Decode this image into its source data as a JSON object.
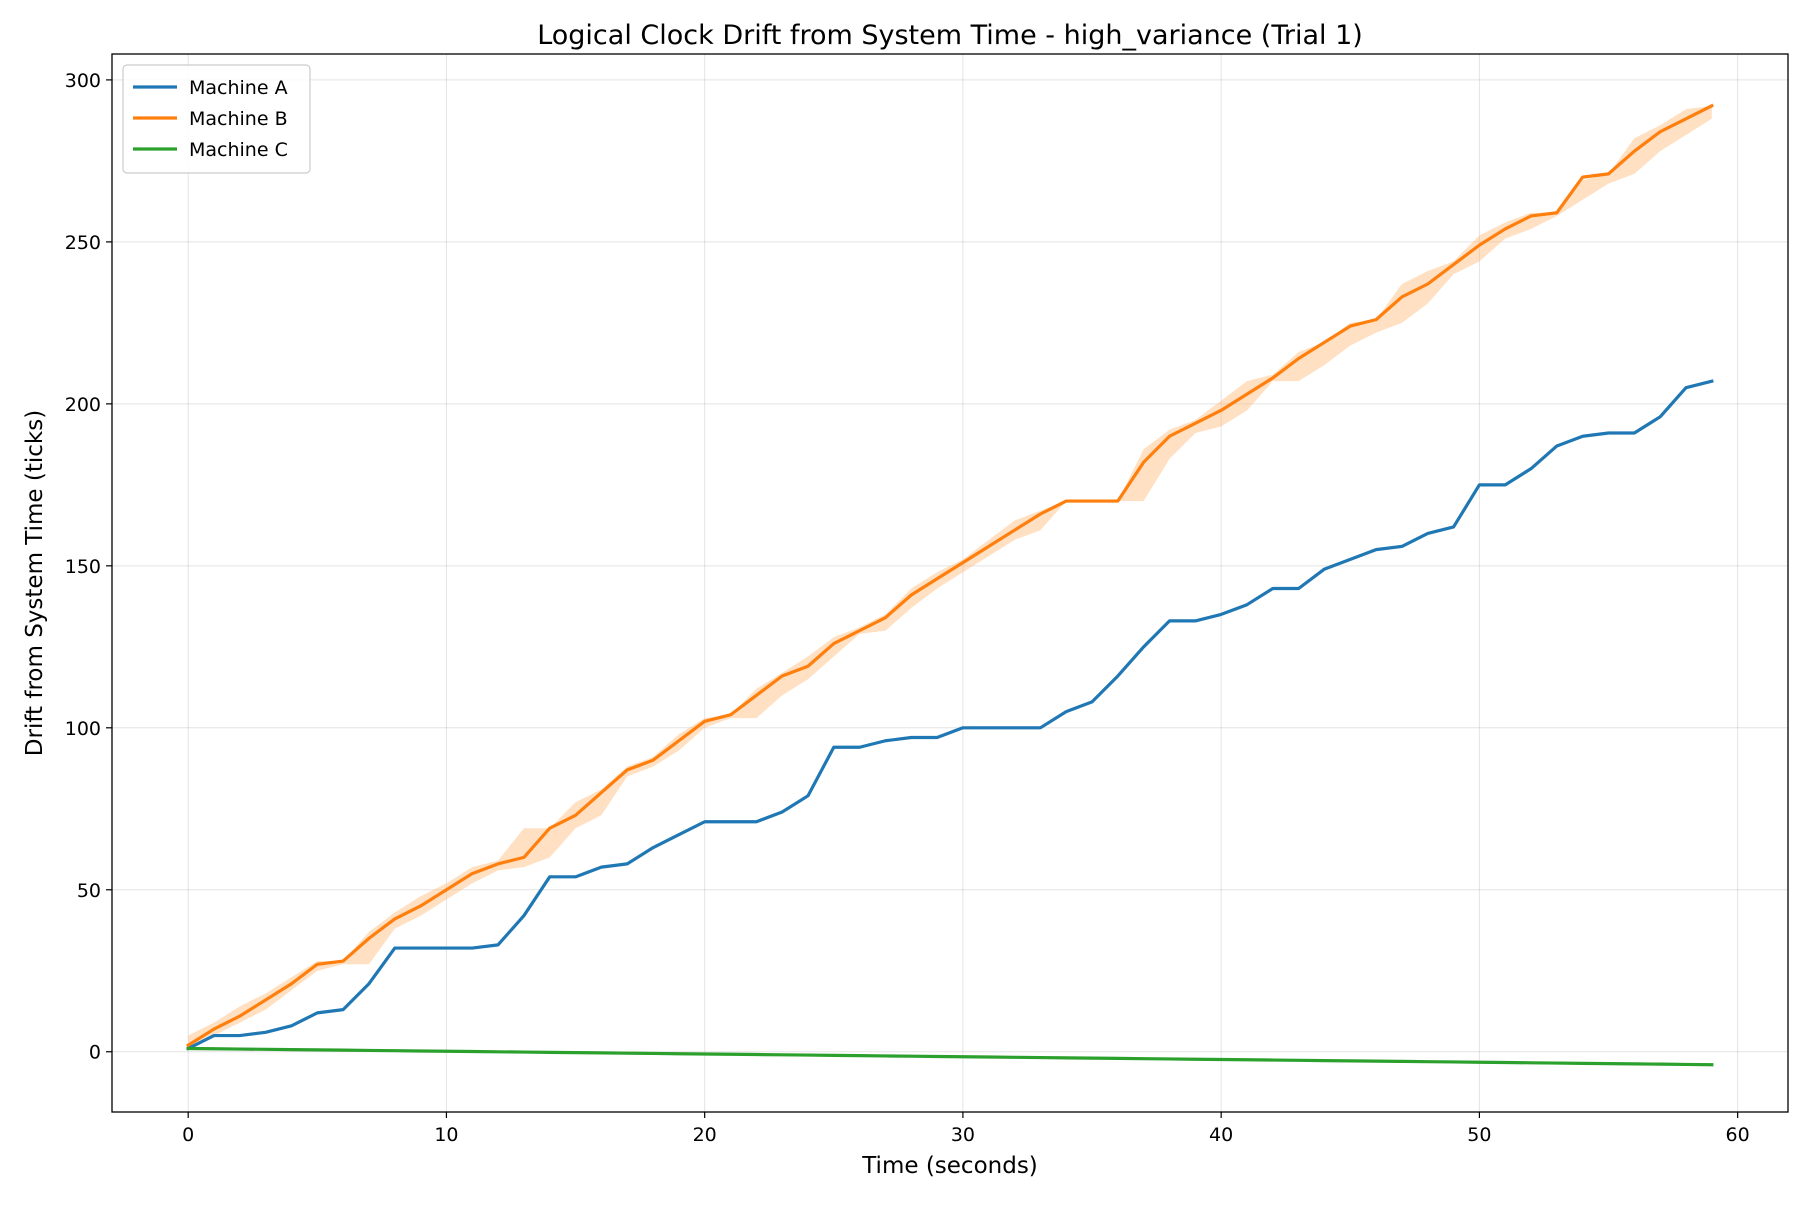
{
  "chart_data": {
    "type": "line",
    "title": "Logical Clock Drift from System Time - high_variance (Trial 1)",
    "xlabel": "Time (seconds)",
    "ylabel": "Drift from System Time (ticks)",
    "xlim": [
      -2.95,
      61.95
    ],
    "ylim": [
      -18.6,
      308.0
    ],
    "xticks": [
      0,
      10,
      20,
      30,
      40,
      50,
      60
    ],
    "yticks": [
      0,
      50,
      100,
      150,
      200,
      250,
      300
    ],
    "grid": true,
    "legend_position": "upper left",
    "x": [
      0,
      1,
      2,
      3,
      4,
      5,
      6,
      7,
      8,
      9,
      10,
      11,
      12,
      13,
      14,
      15,
      16,
      17,
      18,
      19,
      20,
      21,
      22,
      23,
      24,
      25,
      26,
      27,
      28,
      29,
      30,
      31,
      32,
      33,
      34,
      35,
      36,
      37,
      38,
      39,
      40,
      41,
      42,
      43,
      44,
      45,
      46,
      47,
      48,
      49,
      50,
      51,
      52,
      53,
      54,
      55,
      56,
      57,
      58,
      59
    ],
    "series": [
      {
        "name": "Machine A",
        "color": "#1f77b4",
        "values": [
          1,
          5,
          5,
          6,
          8,
          12,
          13,
          21,
          32,
          32,
          32,
          32,
          33,
          42,
          54,
          54,
          57,
          58,
          63,
          67,
          71,
          71,
          71,
          74,
          79,
          94,
          94,
          96,
          97,
          97,
          100,
          100,
          100,
          100,
          105,
          108,
          116,
          125,
          133,
          133,
          135,
          138,
          143,
          143,
          149,
          152,
          155,
          156,
          160,
          162,
          175,
          175,
          180,
          187,
          190,
          191,
          191,
          196,
          205,
          207
        ]
      },
      {
        "name": "Machine B",
        "color": "#ff7f0e",
        "band_color": "#ffbb78",
        "values": [
          2,
          7,
          11,
          16,
          21,
          27,
          28,
          35,
          41,
          45,
          50,
          55,
          58,
          60,
          69,
          73,
          80,
          87,
          90,
          96,
          102,
          104,
          110,
          116,
          119,
          126,
          130,
          134,
          141,
          146,
          151,
          156,
          161,
          166,
          170,
          170,
          170,
          182,
          190,
          194,
          198,
          203,
          208,
          214,
          219,
          224,
          226,
          233,
          237,
          243,
          249,
          254,
          258,
          259,
          270,
          271,
          278,
          284,
          288,
          292
        ],
        "lower": [
          1,
          5,
          9,
          13,
          19,
          25,
          27,
          27,
          38,
          42,
          47,
          52,
          56,
          57,
          60,
          69,
          73,
          85,
          88,
          93,
          100,
          103,
          103,
          110,
          115,
          122,
          129,
          130,
          137,
          143,
          148,
          153,
          158,
          161,
          170,
          170,
          170,
          170,
          183,
          191,
          193,
          198,
          207,
          207,
          212,
          218,
          222,
          225,
          231,
          240,
          244,
          251,
          254,
          258,
          263,
          268,
          271,
          278,
          283,
          288
        ],
        "upper": [
          5,
          9,
          14,
          18,
          23,
          28,
          28,
          37,
          43,
          48,
          52,
          57,
          59,
          69,
          69,
          77,
          81,
          88,
          91,
          98,
          103,
          104,
          112,
          117,
          122,
          128,
          131,
          135,
          143,
          148,
          152,
          158,
          164,
          167,
          170,
          170,
          170,
          186,
          192,
          195,
          201,
          207,
          209,
          216,
          219,
          225,
          226,
          237,
          241,
          244,
          252,
          256,
          259,
          259,
          269,
          271,
          282,
          286,
          291,
          292
        ]
      },
      {
        "name": "Machine C",
        "color": "#2ca02c",
        "values": [
          1,
          0.92,
          0.83,
          0.75,
          0.66,
          0.58,
          0.49,
          0.41,
          0.32,
          0.24,
          0.15,
          0.07,
          -0.02,
          -0.1,
          -0.19,
          -0.27,
          -0.36,
          -0.44,
          -0.53,
          -0.61,
          -0.69,
          -0.78,
          -0.86,
          -0.95,
          -1.03,
          -1.12,
          -1.2,
          -1.29,
          -1.37,
          -1.46,
          -1.54,
          -1.63,
          -1.71,
          -1.8,
          -1.88,
          -1.97,
          -2.05,
          -2.14,
          -2.22,
          -2.31,
          -2.39,
          -2.47,
          -2.56,
          -2.64,
          -2.73,
          -2.81,
          -2.9,
          -2.98,
          -3.07,
          -3.15,
          -3.24,
          -3.32,
          -3.41,
          -3.49,
          -3.58,
          -3.66,
          -3.75,
          -3.83,
          -3.92,
          -4
        ]
      }
    ]
  }
}
